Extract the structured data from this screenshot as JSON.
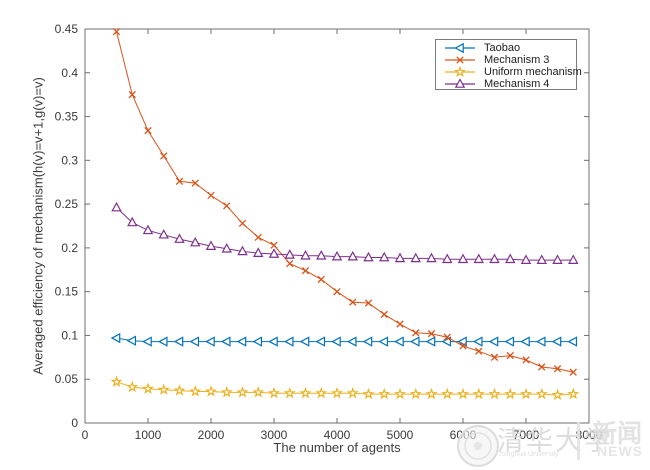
{
  "figure": {
    "background": "#ffffff",
    "axis_color": "#6f6f6f",
    "tick_label_color": "#3a3a3a"
  },
  "chart_data": {
    "type": "line",
    "title": "",
    "xlabel": "The number of agents",
    "ylabel": "Averaged efficiency of mechanism(h(v)=v+1,g(v)=v)",
    "xlim": [
      0,
      8000
    ],
    "ylim": [
      0,
      0.45
    ],
    "xticks": [
      0,
      1000,
      2000,
      3000,
      4000,
      5000,
      6000,
      7000,
      8000
    ],
    "yticks": [
      "0",
      "0.05",
      "0.1",
      "0.15",
      "0.2",
      "0.25",
      "0.3",
      "0.35",
      "0.4",
      "0.45"
    ],
    "grid": false,
    "legend_position": "top-right",
    "x": [
      500,
      750,
      1000,
      1250,
      1500,
      1750,
      2000,
      2250,
      2500,
      2750,
      3000,
      3250,
      3500,
      3750,
      4000,
      4250,
      4500,
      4750,
      5000,
      5250,
      5500,
      5750,
      6000,
      6250,
      6500,
      6750,
      7000,
      7250,
      7500,
      7750
    ],
    "series": [
      {
        "name": "Taobao",
        "color": "#0072BD",
        "marker": "triangle-left",
        "values": [
          0.097,
          0.094,
          0.093,
          0.093,
          0.093,
          0.093,
          0.093,
          0.093,
          0.093,
          0.093,
          0.093,
          0.093,
          0.093,
          0.093,
          0.093,
          0.093,
          0.093,
          0.093,
          0.093,
          0.093,
          0.093,
          0.093,
          0.093,
          0.093,
          0.093,
          0.093,
          0.093,
          0.093,
          0.093,
          0.093
        ]
      },
      {
        "name": "Mechanism 3",
        "color": "#D95319",
        "marker": "x",
        "values": [
          0.447,
          0.375,
          0.334,
          0.305,
          0.276,
          0.274,
          0.26,
          0.248,
          0.228,
          0.212,
          0.203,
          0.182,
          0.174,
          0.164,
          0.15,
          0.138,
          0.137,
          0.124,
          0.113,
          0.103,
          0.102,
          0.098,
          0.088,
          0.082,
          0.075,
          0.077,
          0.072,
          0.064,
          0.062,
          0.058
        ]
      },
      {
        "name": "Uniform mechanism",
        "color": "#EDB120",
        "marker": "star",
        "values": [
          0.047,
          0.041,
          0.039,
          0.038,
          0.037,
          0.036,
          0.036,
          0.035,
          0.035,
          0.035,
          0.034,
          0.034,
          0.034,
          0.034,
          0.034,
          0.034,
          0.033,
          0.033,
          0.033,
          0.033,
          0.033,
          0.033,
          0.033,
          0.033,
          0.033,
          0.033,
          0.033,
          0.033,
          0.032,
          0.033
        ]
      },
      {
        "name": "Mechanism 4",
        "color": "#7E2F8E",
        "marker": "triangle-up",
        "values": [
          0.246,
          0.229,
          0.22,
          0.215,
          0.21,
          0.206,
          0.202,
          0.199,
          0.196,
          0.194,
          0.193,
          0.192,
          0.191,
          0.191,
          0.19,
          0.19,
          0.189,
          0.189,
          0.188,
          0.188,
          0.188,
          0.187,
          0.187,
          0.187,
          0.187,
          0.187,
          0.186,
          0.186,
          0.186,
          0.186
        ]
      }
    ]
  },
  "watermark": {
    "cn_title": "清华大学",
    "en_subtitle": "Tsinghua University",
    "news_cn": "新闻",
    "news_en": "NEWS"
  }
}
